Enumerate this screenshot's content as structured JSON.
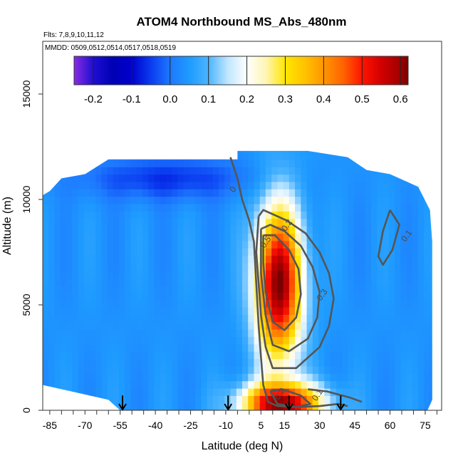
{
  "chart_data": {
    "type": "heatmap",
    "title": "ATOM4 Northbound MS_Abs_480nm",
    "flights_note": "Flts: 7,8,9,10,11,12",
    "dates_note": "MMDD: 0509,0512,0514,0517,0518,0519",
    "xlabel": "Latitude (deg N)",
    "ylabel": "Altitude (m)",
    "xlim": [
      -88,
      82
    ],
    "ylim": [
      0,
      17500
    ],
    "x_ticks": [
      -85,
      -70,
      -55,
      -40,
      -25,
      -10,
      5,
      15,
      30,
      45,
      60,
      75
    ],
    "y_ticks": [
      0,
      5000,
      10000,
      15000
    ],
    "colorbar": {
      "range": [
        -0.25,
        0.62
      ],
      "ticks": [
        -0.2,
        -0.1,
        0.0,
        0.1,
        0.2,
        0.3,
        0.4,
        0.5,
        0.6
      ],
      "stops": [
        {
          "v": -0.25,
          "c": "#8a2be2"
        },
        {
          "v": -0.2,
          "c": "#1e0fd2"
        },
        {
          "v": -0.15,
          "c": "#0000b4"
        },
        {
          "v": -0.1,
          "c": "#0000cd"
        },
        {
          "v": -0.05,
          "c": "#0a3cf0"
        },
        {
          "v": 0.0,
          "c": "#1e78ff"
        },
        {
          "v": 0.05,
          "c": "#1e9bff"
        },
        {
          "v": 0.1,
          "c": "#4cb4ff"
        },
        {
          "v": 0.15,
          "c": "#bfe6ff"
        },
        {
          "v": 0.2,
          "c": "#ffffff"
        },
        {
          "v": 0.25,
          "c": "#fff5b4"
        },
        {
          "v": 0.3,
          "c": "#ffe600"
        },
        {
          "v": 0.35,
          "c": "#ffc300"
        },
        {
          "v": 0.4,
          "c": "#ff9600"
        },
        {
          "v": 0.45,
          "c": "#ff6400"
        },
        {
          "v": 0.5,
          "c": "#ff1400"
        },
        {
          "v": 0.55,
          "c": "#d20000"
        },
        {
          "v": 0.6,
          "c": "#a00000"
        },
        {
          "v": 0.62,
          "c": "#780000"
        }
      ]
    },
    "field": {
      "background": 0.04,
      "plume": {
        "lat": 12.5,
        "alt": 6000,
        "peak": 0.58,
        "sigma_lat": 7,
        "sigma_alt": 2600
      },
      "surface_plume": {
        "lat": 14,
        "alt": 300,
        "peak": 0.55,
        "sigma_lat": 12,
        "sigma_alt": 700
      },
      "negative_band": {
        "lat": -35,
        "alt": 11000,
        "peak": -0.1,
        "sigma_lat": 25,
        "sigma_alt": 700
      }
    },
    "coverage_boundary": [
      [
        -88,
        0
      ],
      [
        -88,
        10200
      ],
      [
        -85,
        10400
      ],
      [
        -80,
        11000
      ],
      [
        -70,
        11200
      ],
      [
        -60,
        11900
      ],
      [
        -5,
        11900
      ],
      [
        -5,
        12300
      ],
      [
        25,
        12300
      ],
      [
        25,
        12300
      ],
      [
        42,
        12000
      ],
      [
        50,
        11400
      ],
      [
        60,
        11200
      ],
      [
        72,
        10600
      ],
      [
        77,
        9500
      ],
      [
        78,
        8000
      ],
      [
        78,
        500
      ],
      [
        76,
        0
      ],
      [
        -55,
        0
      ],
      [
        -60,
        500
      ],
      [
        -80,
        1000
      ],
      [
        -88,
        1200
      ]
    ],
    "contours": [
      {
        "label": "0",
        "label_at": [
          -6,
          10400
        ],
        "points": [
          [
            -8,
            12000
          ],
          [
            -5,
            11000
          ],
          [
            -3,
            10000
          ],
          [
            0,
            9000
          ],
          [
            2,
            8000
          ],
          [
            3,
            6000
          ],
          [
            4,
            4000
          ],
          [
            5,
            2500
          ],
          [
            6,
            1200
          ],
          [
            8,
            400
          ],
          [
            12,
            200
          ],
          [
            20,
            150
          ],
          [
            30,
            200
          ],
          [
            38,
            300
          ],
          [
            42,
            200
          ]
        ]
      },
      {
        "label": "0.1",
        "label_at": [
          68,
          8200
        ],
        "points": [
          [
            60,
            9500
          ],
          [
            57,
            8500
          ],
          [
            55,
            7300
          ],
          [
            57,
            6900
          ],
          [
            61,
            7600
          ],
          [
            64,
            8800
          ],
          [
            60,
            9500
          ]
        ]
      },
      {
        "label": "0.2",
        "label_at": [
          17,
          8700
        ],
        "points": [
          [
            4,
            9200
          ],
          [
            6,
            9500
          ],
          [
            10,
            9300
          ],
          [
            16,
            9000
          ],
          [
            24,
            8400
          ],
          [
            30,
            7500
          ],
          [
            34,
            6500
          ],
          [
            36,
            5300
          ],
          [
            34,
            4000
          ],
          [
            30,
            3000
          ],
          [
            20,
            2000
          ],
          [
            10,
            2000
          ],
          [
            7,
            3000
          ],
          [
            5,
            4500
          ],
          [
            4,
            6000
          ],
          [
            3,
            7500
          ],
          [
            4,
            9200
          ]
        ]
      },
      {
        "label": "0.3",
        "label_at": [
          32,
          5400
        ],
        "points": [
          [
            5,
            8600
          ],
          [
            9,
            8800
          ],
          [
            15,
            8500
          ],
          [
            22,
            7800
          ],
          [
            27,
            6800
          ],
          [
            30,
            5600
          ],
          [
            29,
            4400
          ],
          [
            25,
            3400
          ],
          [
            17,
            2800
          ],
          [
            10,
            3100
          ],
          [
            7,
            4500
          ],
          [
            5,
            6500
          ],
          [
            5,
            8600
          ]
        ]
      },
      {
        "label": "0.5",
        "label_at": [
          8,
          7900
        ],
        "points": [
          [
            6,
            8300
          ],
          [
            11,
            8300
          ],
          [
            17,
            7600
          ],
          [
            21,
            6700
          ],
          [
            22,
            5500
          ],
          [
            20,
            4400
          ],
          [
            15,
            3800
          ],
          [
            10,
            4200
          ],
          [
            7,
            5600
          ],
          [
            6,
            7000
          ],
          [
            6,
            8300
          ]
        ]
      },
      {
        "label": "0.2",
        "label_at": [
          14,
          700
        ],
        "points": [
          [
            9,
            900
          ],
          [
            14,
            1000
          ],
          [
            22,
            700
          ],
          [
            26,
            300
          ],
          [
            20,
            150
          ],
          [
            12,
            300
          ],
          [
            9,
            900
          ]
        ]
      },
      {
        "label": "0.1",
        "label_at": [
          30,
          650
        ],
        "points": [
          [
            25,
            1000
          ],
          [
            33,
            900
          ],
          [
            43,
            600
          ],
          [
            48,
            400
          ]
        ]
      }
    ],
    "annotations": [
      {
        "type": "arrow",
        "lat": -54,
        "alt_top": 700
      },
      {
        "type": "arrow",
        "lat": -9,
        "alt_top": 700
      },
      {
        "type": "arrow",
        "lat": 17,
        "alt_top": 700
      },
      {
        "type": "arrow",
        "lat": 39,
        "alt_top": 700
      }
    ]
  }
}
